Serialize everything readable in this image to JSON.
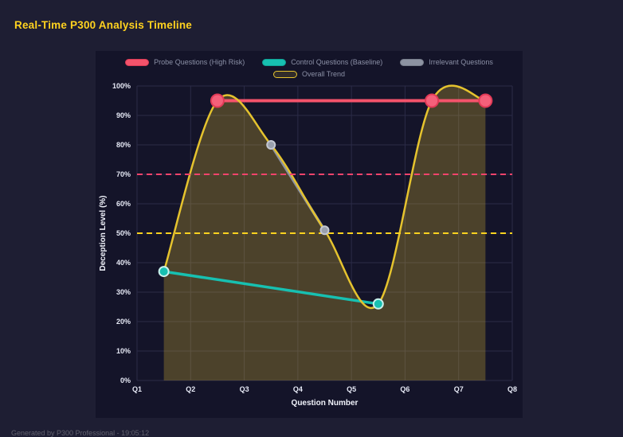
{
  "page": {
    "title": "Real-Time P300 Analysis Timeline",
    "footer": "Generated by P300 Professional - 19:05:12"
  },
  "chart_data": {
    "type": "line",
    "title": "Real-Time P300 Analysis Timeline",
    "xlabel": "Question Number",
    "ylabel": "Deception Level (%)",
    "x_range": [
      1,
      8
    ],
    "y_range": [
      0,
      100
    ],
    "grid": true,
    "legend_position": "top",
    "background": "#141429",
    "grid_color": "#2b2b47",
    "axis_text_color": "#e6e9f5",
    "axis_title_color": "#f0f2fa",
    "x_ticks": [
      {
        "value": 1,
        "label": "Q1"
      },
      {
        "value": 2,
        "label": "Q2"
      },
      {
        "value": 3,
        "label": "Q3"
      },
      {
        "value": 4,
        "label": "Q4"
      },
      {
        "value": 5,
        "label": "Q5"
      },
      {
        "value": 6,
        "label": "Q6"
      },
      {
        "value": 7,
        "label": "Q7"
      },
      {
        "value": 8,
        "label": "Q8"
      }
    ],
    "y_ticks": [
      {
        "value": 0,
        "label": "0%"
      },
      {
        "value": 10,
        "label": "10%"
      },
      {
        "value": 20,
        "label": "20%"
      },
      {
        "value": 30,
        "label": "30%"
      },
      {
        "value": 40,
        "label": "40%"
      },
      {
        "value": 50,
        "label": "50%"
      },
      {
        "value": 60,
        "label": "60%"
      },
      {
        "value": 70,
        "label": "70%"
      },
      {
        "value": 80,
        "label": "80%"
      },
      {
        "value": 90,
        "label": "90%"
      },
      {
        "value": 100,
        "label": "100%"
      }
    ],
    "series": [
      {
        "name": "Probe Questions (High Risk)",
        "color": "#f4536b",
        "line_width": 4,
        "smooth": false,
        "marker_radius": 8,
        "marker_fill": "#f4607a",
        "marker_stroke": "#e13a57",
        "swatch_fill": "#f4536b",
        "swatch_border": "#d93a55",
        "points": [
          [
            2.5,
            95
          ],
          [
            6.5,
            95
          ],
          [
            7.5,
            95
          ]
        ]
      },
      {
        "name": "Control Questions (Baseline)",
        "color": "#17c0b1",
        "line_width": 3.5,
        "smooth": false,
        "marker_radius": 6,
        "marker_fill": "#17c0b1",
        "marker_stroke": "#c9f1ec",
        "swatch_fill": "#17c0b1",
        "swatch_border": "#0fa094",
        "points": [
          [
            1.5,
            37
          ],
          [
            5.5,
            26
          ]
        ]
      },
      {
        "name": "Irrelevant Questions",
        "color": "#8d93a2",
        "line_width": 3.5,
        "smooth": false,
        "marker_radius": 5,
        "marker_fill": "#9aa0ad",
        "marker_stroke": "#c4c8d2",
        "swatch_fill": "#8d93a2",
        "swatch_border": "#767c8a",
        "points": [
          [
            3.5,
            80
          ],
          [
            4.5,
            51
          ]
        ]
      },
      {
        "name": "Overall Trend",
        "color": "#e5c32e",
        "line_width": 2.5,
        "smooth": true,
        "marker_radius": 0,
        "fill": "rgba(222,188,52,0.28)",
        "swatch_fill": "rgba(222,188,52,0.15)",
        "swatch_border": "#e5c32e",
        "points": [
          [
            1.5,
            37
          ],
          [
            2.5,
            95
          ],
          [
            3.5,
            80
          ],
          [
            4.5,
            51
          ],
          [
            5.5,
            26
          ],
          [
            6.5,
            95
          ],
          [
            7.5,
            95
          ]
        ]
      }
    ],
    "thresholds": [
      {
        "value": 70,
        "color": "#f4436b",
        "style": "dashed"
      },
      {
        "value": 50,
        "color": "#ffd21f",
        "style": "dashed"
      }
    ]
  }
}
